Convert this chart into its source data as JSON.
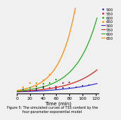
{
  "title": "",
  "xlabel": "Time (min)",
  "ylabel": "",
  "caption": "Figure 5: The simulated curves of TSS content by the\nfour-parameter exponential model",
  "xlim": [
    0,
    125
  ],
  "ylim": [
    0,
    0.9
  ],
  "yticks": [],
  "xticks": [
    0,
    20,
    40,
    60,
    80,
    100,
    120
  ],
  "legend_labels_scatter": [
    "500",
    "550",
    "600",
    "650"
  ],
  "legend_labels_line": [
    "500",
    "550",
    "600",
    "650"
  ],
  "scatter_colors": [
    "#3333cc",
    "#cc2222",
    "#22aa22",
    "#ff8800"
  ],
  "line_colors": [
    "#3333cc",
    "#cc2222",
    "#22aa22",
    "#ff8800"
  ],
  "line_params": [
    [
      0.002,
      0.03,
      0.001,
      0.01
    ],
    [
      0.003,
      0.038,
      0.002,
      0.015
    ],
    [
      0.005,
      0.048,
      0.003,
      0.02
    ],
    [
      0.008,
      0.058,
      0.004,
      0.025
    ]
  ],
  "scatter_x_sets": [
    [
      10,
      20,
      30,
      40,
      50,
      60,
      70,
      80,
      90,
      100,
      110
    ],
    [
      10,
      20,
      30,
      40,
      50,
      60,
      70,
      80
    ],
    [
      10,
      20,
      30,
      40,
      50,
      60
    ],
    [
      10,
      20,
      30,
      40,
      50
    ]
  ],
  "scatter_noise_seeds": [
    0,
    42,
    84,
    126
  ],
  "scatter_noise_scale": [
    0.012,
    0.018,
    0.025,
    0.03
  ],
  "background_color": "#f0f0f0",
  "font_size": 5,
  "tick_font_size": 4.5,
  "legend_font_size": 3.8,
  "linewidth": 0.9,
  "marker_size": 4.5
}
